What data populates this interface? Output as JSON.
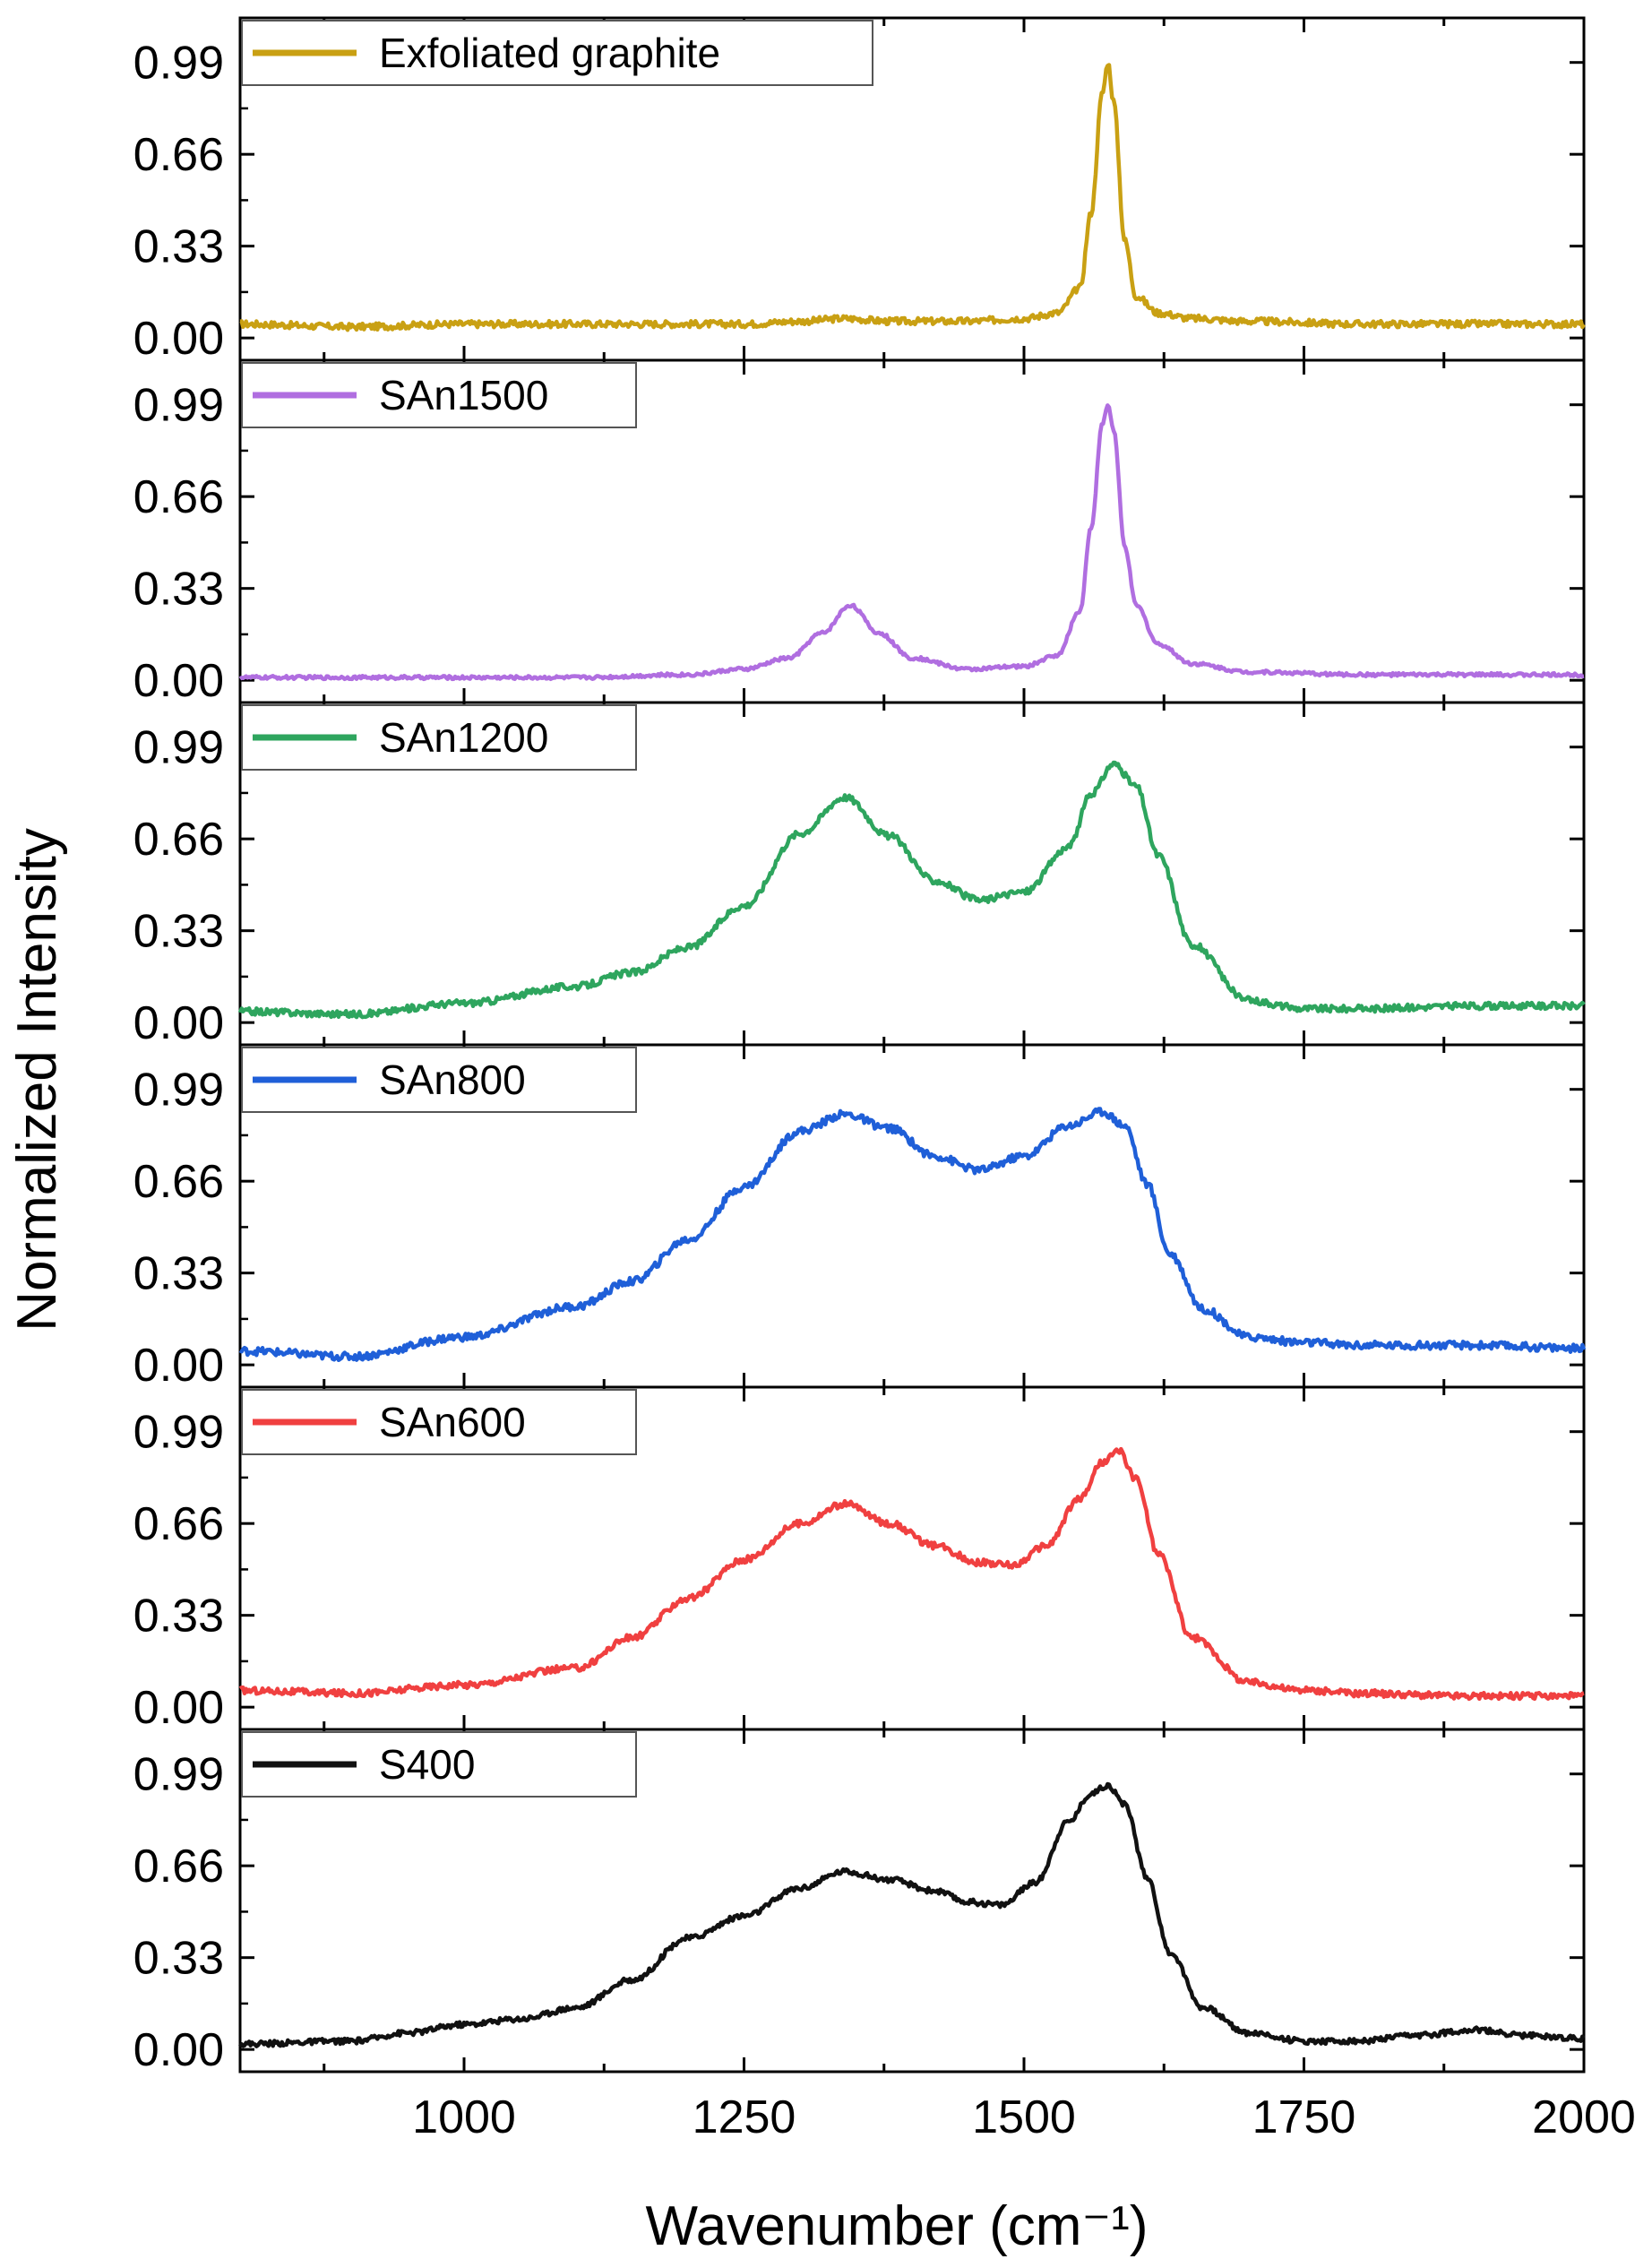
{
  "figure": {
    "x_axis_title": "Wavenumber (cm⁻¹)",
    "y_axis_title": "Normalized Intensity",
    "x_tick_labels": [
      "1000",
      "1250",
      "1500",
      "1750",
      "2000"
    ],
    "y_tick_labels": [
      "0.00",
      "0.33",
      "0.66",
      "0.99"
    ]
  },
  "chart_data": {
    "type": "line",
    "layout": "stacked-panels",
    "xlabel": "Wavenumber (cm⁻¹)",
    "ylabel": "Normalized Intensity",
    "xlim": [
      800,
      2000
    ],
    "ylim": [
      -0.08,
      1.15
    ],
    "x_ticks": [
      1000,
      1250,
      1500,
      1750,
      2000
    ],
    "y_ticks": [
      0.0,
      0.33,
      0.66,
      0.99
    ],
    "legend_location": "top-left of each panel",
    "series": [
      {
        "name": "Exfoliated graphite",
        "color": "#c9a013",
        "x": [
          800,
          900,
          1000,
          1100,
          1200,
          1250,
          1300,
          1340,
          1380,
          1450,
          1500,
          1530,
          1550,
          1560,
          1570,
          1575,
          1580,
          1590,
          1600,
          1620,
          1650,
          1700,
          1800,
          1900,
          2000
        ],
        "y": [
          0.05,
          0.04,
          0.05,
          0.05,
          0.05,
          0.05,
          0.06,
          0.07,
          0.06,
          0.06,
          0.07,
          0.09,
          0.18,
          0.45,
          0.88,
          0.99,
          0.85,
          0.35,
          0.15,
          0.09,
          0.07,
          0.06,
          0.05,
          0.05,
          0.05
        ]
      },
      {
        "name": "SAn1500",
        "color": "#b06ee0",
        "x": [
          800,
          900,
          1000,
          1100,
          1200,
          1250,
          1290,
          1320,
          1345,
          1370,
          1400,
          1450,
          1500,
          1530,
          1550,
          1560,
          1570,
          1575,
          1580,
          1590,
          1600,
          1620,
          1650,
          1700,
          1800,
          2000
        ],
        "y": [
          0.01,
          0.01,
          0.01,
          0.01,
          0.02,
          0.04,
          0.08,
          0.17,
          0.27,
          0.17,
          0.08,
          0.04,
          0.05,
          0.09,
          0.25,
          0.55,
          0.92,
          0.99,
          0.9,
          0.48,
          0.27,
          0.13,
          0.06,
          0.03,
          0.02,
          0.02
        ]
      },
      {
        "name": "SAn1200",
        "color": "#2ea55e",
        "x": [
          800,
          900,
          1000,
          1100,
          1150,
          1200,
          1250,
          1300,
          1340,
          1380,
          1420,
          1460,
          1500,
          1540,
          1560,
          1580,
          1600,
          1620,
          1650,
          1700,
          1750,
          1800,
          1900,
          2000
        ],
        "y": [
          0.04,
          0.03,
          0.07,
          0.13,
          0.18,
          0.27,
          0.42,
          0.68,
          0.81,
          0.67,
          0.51,
          0.44,
          0.47,
          0.63,
          0.82,
          0.93,
          0.85,
          0.6,
          0.28,
          0.08,
          0.05,
          0.05,
          0.06,
          0.06
        ]
      },
      {
        "name": "SAn800",
        "color": "#1f5fd8",
        "x": [
          800,
          900,
          1000,
          1100,
          1150,
          1200,
          1250,
          1300,
          1340,
          1380,
          1420,
          1460,
          1500,
          1540,
          1570,
          1590,
          1610,
          1630,
          1660,
          1700,
          1750,
          1800,
          1900,
          2000
        ],
        "y": [
          0.05,
          0.03,
          0.1,
          0.21,
          0.3,
          0.45,
          0.64,
          0.84,
          0.9,
          0.85,
          0.75,
          0.7,
          0.75,
          0.86,
          0.91,
          0.86,
          0.65,
          0.4,
          0.2,
          0.1,
          0.08,
          0.07,
          0.07,
          0.06
        ]
      },
      {
        "name": "SAn600",
        "color": "#f04040",
        "x": [
          800,
          900,
          1000,
          1100,
          1150,
          1200,
          1250,
          1300,
          1340,
          1380,
          1420,
          1460,
          1490,
          1520,
          1550,
          1570,
          1585,
          1600,
          1620,
          1650,
          1700,
          1750,
          1800,
          1900,
          2000
        ],
        "y": [
          0.06,
          0.05,
          0.08,
          0.14,
          0.25,
          0.39,
          0.53,
          0.66,
          0.73,
          0.66,
          0.58,
          0.52,
          0.51,
          0.58,
          0.75,
          0.88,
          0.92,
          0.82,
          0.55,
          0.25,
          0.09,
          0.06,
          0.05,
          0.04,
          0.04
        ]
      },
      {
        "name": "S400",
        "color": "#111111",
        "x": [
          800,
          900,
          950,
          1000,
          1050,
          1100,
          1150,
          1200,
          1250,
          1300,
          1340,
          1380,
          1420,
          1450,
          1480,
          1510,
          1540,
          1560,
          1575,
          1590,
          1610,
          1630,
          1660,
          1700,
          1750,
          1800,
          1850,
          1900,
          1950,
          2000
        ],
        "y": [
          0.02,
          0.03,
          0.06,
          0.09,
          0.11,
          0.15,
          0.25,
          0.4,
          0.48,
          0.58,
          0.64,
          0.61,
          0.57,
          0.53,
          0.52,
          0.6,
          0.82,
          0.92,
          0.95,
          0.88,
          0.62,
          0.35,
          0.15,
          0.06,
          0.03,
          0.03,
          0.05,
          0.07,
          0.05,
          0.04
        ]
      }
    ]
  }
}
